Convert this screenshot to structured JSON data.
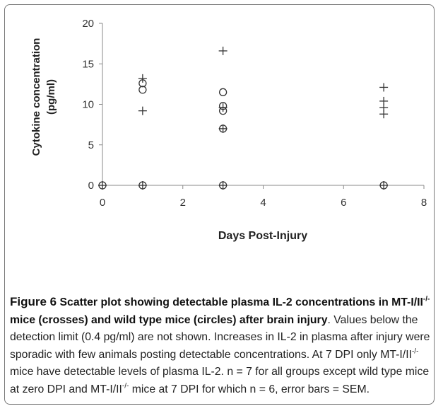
{
  "chart_data": {
    "type": "scatter",
    "xlabel": "Days Post-Injury",
    "ylabel_line1": "Cytokine concentration",
    "ylabel_line2": "(pg/ml)",
    "xlim": [
      0,
      8
    ],
    "ylim": [
      0,
      20
    ],
    "x_ticks": [
      "0",
      "2",
      "4",
      "6",
      "8"
    ],
    "y_ticks": [
      "0",
      "5",
      "10",
      "15",
      "20"
    ],
    "x_tick_values": [
      0,
      2,
      4,
      6,
      8
    ],
    "y_tick_values": [
      0,
      5,
      10,
      15,
      20
    ],
    "grid": false,
    "legend": "none",
    "series": [
      {
        "marker": "cross",
        "points": [
          {
            "x": 0,
            "y": 0
          },
          {
            "x": 1,
            "y": 0
          },
          {
            "x": 1,
            "y": 9.2
          },
          {
            "x": 1,
            "y": 13.2
          },
          {
            "x": 3,
            "y": 0
          },
          {
            "x": 3,
            "y": 7.0
          },
          {
            "x": 3,
            "y": 9.6
          },
          {
            "x": 3,
            "y": 16.6
          },
          {
            "x": 7,
            "y": 0
          },
          {
            "x": 7,
            "y": 8.8
          },
          {
            "x": 7,
            "y": 9.6
          },
          {
            "x": 7,
            "y": 10.4
          },
          {
            "x": 7,
            "y": 12.1
          }
        ]
      },
      {
        "marker": "circle",
        "points": [
          {
            "x": 0,
            "y": 0
          },
          {
            "x": 1,
            "y": 0
          },
          {
            "x": 1,
            "y": 11.8
          },
          {
            "x": 1,
            "y": 12.6
          },
          {
            "x": 3,
            "y": 0
          },
          {
            "x": 3,
            "y": 7.0
          },
          {
            "x": 3,
            "y": 9.2
          },
          {
            "x": 3,
            "y": 9.8
          },
          {
            "x": 3,
            "y": 11.5
          },
          {
            "x": 7,
            "y": 0
          }
        ]
      }
    ]
  },
  "caption": {
    "bold_lead": "Figure 6",
    "bold_title_a": " Scatter plot showing detectable plasma IL-2 concentrations in MT-I/II",
    "sup_a": "-/-",
    "bold_title_b": " mice (crosses) and wild type mice (circles) after brain injury",
    "text_a": ". Values below the detection limit (0.4 pg/ml) are not shown. Increases in IL-2 in plasma after injury were sporadic with few animals posting detectable concentrations. At 7 DPI only MT-I/II",
    "sup_b": "-/-",
    "text_b": " mice have detectable levels of plasma IL-2. n = 7 for all groups except wild type mice at zero DPI and MT-I/II",
    "sup_c": "-/-",
    "text_c": " mice at 7 DPI for which n = 6, error bars = SEM."
  }
}
